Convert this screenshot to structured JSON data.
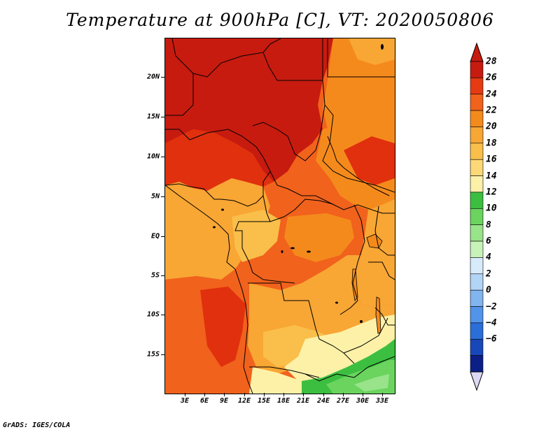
{
  "title": "Temperature at 900hPa [C], VT: 2020050806",
  "footer": "GrADS: IGES/COLA",
  "lat_ticks": [
    "20N",
    "15N",
    "10N",
    "5N",
    "EQ",
    "5S",
    "10S",
    "15S"
  ],
  "lon_ticks": [
    "3E",
    "6E",
    "9E",
    "12E",
    "15E",
    "18E",
    "21E",
    "24E",
    "27E",
    "30E",
    "33E"
  ],
  "colorbar": {
    "labels": [
      "28",
      "26",
      "24",
      "22",
      "20",
      "18",
      "16",
      "14",
      "12",
      "10",
      "8",
      "6",
      "4",
      "2",
      "0",
      "−2",
      "−4",
      "−6"
    ],
    "colors": [
      "#c71b0f",
      "#e63a12",
      "#f1621c",
      "#f58a1c",
      "#f8a634",
      "#f9bf4a",
      "#fcd976",
      "#fdf1a8",
      "#3cbf40",
      "#6ad45f",
      "#99e48a",
      "#c7f3b8",
      "#d8ebfb",
      "#b2d4f7",
      "#82b4f0",
      "#5194ea",
      "#2a6ed9",
      "#1747b9",
      "#0c1f86"
    ],
    "top_arrow_color": "#c71b0f",
    "bottom_arrow_color": "#ddd8f3"
  },
  "map_colors": {
    "t28": "#c71b0f",
    "t26": "#e0300e",
    "t24": "#f1621c",
    "t22": "#f58a1c",
    "t20": "#f8a634",
    "t18": "#f9bf4a",
    "t16": "#fdf1a8",
    "t14": "#3cbf40",
    "t12": "#6ad45f",
    "t10": "#99e48a",
    "ocean": "#f1621c"
  }
}
